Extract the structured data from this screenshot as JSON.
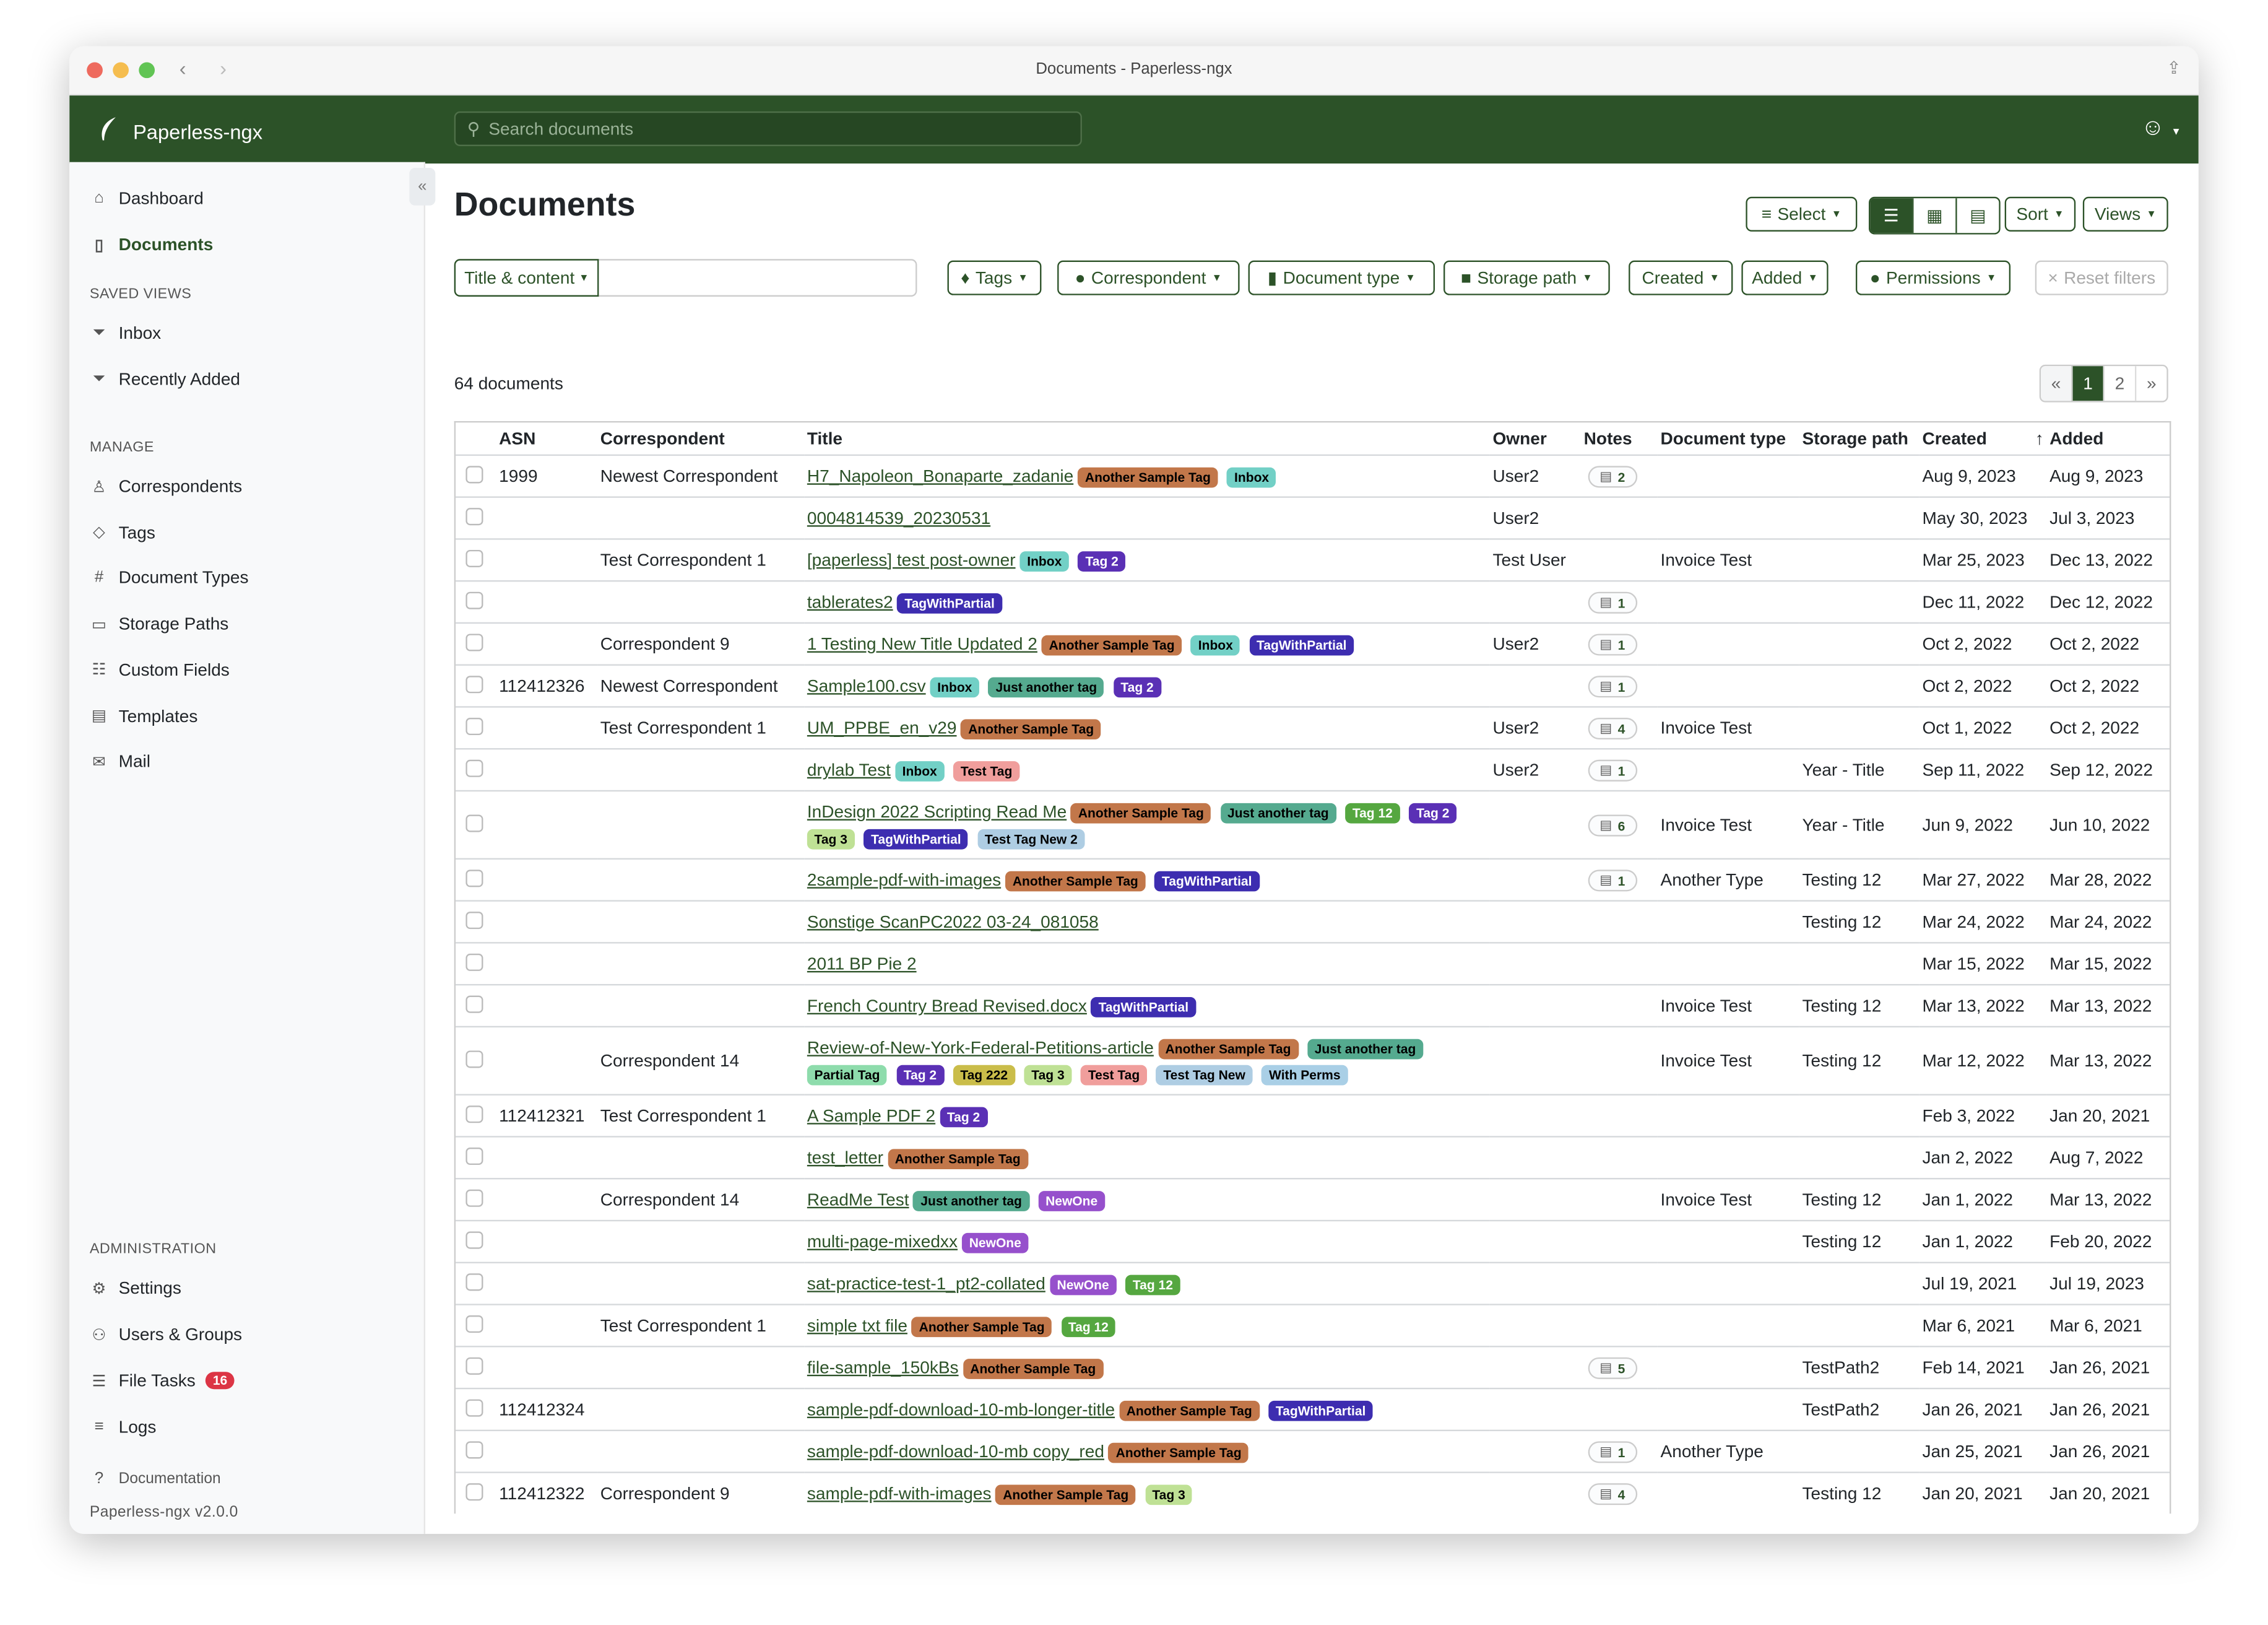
{
  "window": {
    "title": "Documents - Paperless-ngx"
  },
  "app": {
    "name": "Paperless-ngx",
    "search_placeholder": "Search documents"
  },
  "sidebar": {
    "main": [
      {
        "label": "Dashboard",
        "icon": "house-icon"
      },
      {
        "label": "Documents",
        "icon": "files-icon"
      }
    ],
    "saved_views_heading": "SAVED VIEWS",
    "saved_views": [
      {
        "label": "Inbox",
        "icon": "funnel-icon"
      },
      {
        "label": "Recently Added",
        "icon": "funnel-icon"
      }
    ],
    "manage_heading": "MANAGE",
    "manage": [
      {
        "label": "Correspondents",
        "icon": "person-icon"
      },
      {
        "label": "Tags",
        "icon": "tags-icon"
      },
      {
        "label": "Document Types",
        "icon": "hash-icon"
      },
      {
        "label": "Storage Paths",
        "icon": "folder-icon"
      },
      {
        "label": "Custom Fields",
        "icon": "ui-radios-icon"
      },
      {
        "label": "Templates",
        "icon": "file-text-icon"
      },
      {
        "label": "Mail",
        "icon": "envelope-icon"
      }
    ],
    "admin_heading": "ADMINISTRATION",
    "admin": [
      {
        "label": "Settings",
        "icon": "gear-icon"
      },
      {
        "label": "Users & Groups",
        "icon": "people-icon"
      },
      {
        "label": "File Tasks",
        "icon": "list-task-icon",
        "badge": "16"
      },
      {
        "label": "Logs",
        "icon": "text-left-icon"
      }
    ],
    "documentation": "Documentation",
    "version": "Paperless-ngx v2.0.0"
  },
  "page": {
    "title": "Documents",
    "select": "Select",
    "sort": "Sort",
    "views": "Views",
    "count": "64 documents"
  },
  "filters": {
    "title_content": "Title & content",
    "tags": "Tags",
    "correspondent": "Correspondent",
    "document_type": "Document type",
    "storage_path": "Storage path",
    "created": "Created",
    "added": "Added",
    "permissions": "Permissions",
    "reset": "Reset filters"
  },
  "pagination": {
    "prev": "«",
    "pages": [
      "1",
      "2"
    ],
    "current": "1",
    "next": "»"
  },
  "columns": [
    "ASN",
    "Correspondent",
    "Title",
    "Owner",
    "Notes",
    "Document type",
    "Storage path",
    "Created",
    "Added"
  ],
  "sort_indicator": "↑",
  "tag_colors": {
    "Another Sample Tag": {
      "bg": "#c2774a",
      "fg": "#000000"
    },
    "Inbox": {
      "bg": "#72d0c6",
      "fg": "#000000"
    },
    "Tag 2": {
      "bg": "#5a30b5",
      "fg": "#ffffff"
    },
    "TagWithPartial": {
      "bg": "#3d2db0",
      "fg": "#ffffff"
    },
    "Just another tag": {
      "bg": "#55aa8f",
      "fg": "#000000"
    },
    "Test Tag": {
      "bg": "#f09e9c",
      "fg": "#000000"
    },
    "Tag 12": {
      "bg": "#55a740",
      "fg": "#ffffff"
    },
    "Tag 3": {
      "bg": "#bfe195",
      "fg": "#000000"
    },
    "Test Tag New 2": {
      "bg": "#aecde3",
      "fg": "#000000"
    },
    "Partial Tag": {
      "bg": "#8edcac",
      "fg": "#000000"
    },
    "Tag 222": {
      "bg": "#cabd4a",
      "fg": "#000000"
    },
    "Test Tag New": {
      "bg": "#aecde3",
      "fg": "#000000"
    },
    "With Perms": {
      "bg": "#a9cfe6",
      "fg": "#000000"
    },
    "NewOne": {
      "bg": "#9650cc",
      "fg": "#ffffff"
    }
  },
  "rows": [
    {
      "asn": "1999",
      "correspondent": "Newest Correspondent",
      "title": "H7_Napoleon_Bonaparte_zadanie",
      "tags": [
        "Another Sample Tag",
        "Inbox"
      ],
      "owner": "User2",
      "notes": "2",
      "doctype": "",
      "storage": "",
      "created": "Aug 9, 2023",
      "added": "Aug 9, 2023"
    },
    {
      "asn": "",
      "correspondent": "",
      "title": "0004814539_20230531",
      "tags": [],
      "owner": "User2",
      "notes": "",
      "doctype": "",
      "storage": "",
      "created": "May 30, 2023",
      "added": "Jul 3, 2023"
    },
    {
      "asn": "",
      "correspondent": "Test Correspondent 1",
      "title": "[paperless] test post-owner",
      "tags": [
        "Inbox",
        "Tag 2"
      ],
      "owner": "Test User",
      "notes": "",
      "doctype": "Invoice Test",
      "storage": "",
      "created": "Mar 25, 2023",
      "added": "Dec 13, 2022"
    },
    {
      "asn": "",
      "correspondent": "",
      "title": "tablerates2",
      "tags": [
        "TagWithPartial"
      ],
      "owner": "",
      "notes": "1",
      "doctype": "",
      "storage": "",
      "created": "Dec 11, 2022",
      "added": "Dec 12, 2022"
    },
    {
      "asn": "",
      "correspondent": "Correspondent 9",
      "title": "1 Testing New Title Updated 2",
      "tags": [
        "Another Sample Tag",
        "Inbox",
        "TagWithPartial"
      ],
      "owner": "User2",
      "notes": "1",
      "doctype": "",
      "storage": "",
      "created": "Oct 2, 2022",
      "added": "Oct 2, 2022"
    },
    {
      "asn": "112412326",
      "correspondent": "Newest Correspondent",
      "title": "Sample100.csv",
      "tags": [
        "Inbox",
        "Just another tag",
        "Tag 2"
      ],
      "owner": "",
      "notes": "1",
      "doctype": "",
      "storage": "",
      "created": "Oct 2, 2022",
      "added": "Oct 2, 2022"
    },
    {
      "asn": "",
      "correspondent": "Test Correspondent 1",
      "title": "UM_PPBE_en_v29",
      "tags": [
        "Another Sample Tag"
      ],
      "owner": "User2",
      "notes": "4",
      "doctype": "Invoice Test",
      "storage": "",
      "created": "Oct 1, 2022",
      "added": "Oct 2, 2022"
    },
    {
      "asn": "",
      "correspondent": "",
      "title": "drylab Test",
      "tags": [
        "Inbox",
        "Test Tag"
      ],
      "owner": "User2",
      "notes": "1",
      "doctype": "",
      "storage": "Year - Title",
      "created": "Sep 11, 2022",
      "added": "Sep 12, 2022"
    },
    {
      "asn": "",
      "correspondent": "",
      "title": "InDesign 2022 Scripting Read Me",
      "tags": [
        "Another Sample Tag",
        "Just another tag",
        "Tag 12",
        "Tag 2",
        "Tag 3",
        "TagWithPartial",
        "Test Tag New 2"
      ],
      "owner": "",
      "notes": "6",
      "doctype": "Invoice Test",
      "storage": "Year - Title",
      "created": "Jun 9, 2022",
      "added": "Jun 10, 2022"
    },
    {
      "asn": "",
      "correspondent": "",
      "title": "2sample-pdf-with-images",
      "tags": [
        "Another Sample Tag",
        "TagWithPartial"
      ],
      "owner": "",
      "notes": "1",
      "doctype": "Another Type",
      "storage": "Testing 12",
      "created": "Mar 27, 2022",
      "added": "Mar 28, 2022"
    },
    {
      "asn": "",
      "correspondent": "",
      "title": "Sonstige ScanPC2022 03-24_081058",
      "tags": [],
      "owner": "",
      "notes": "",
      "doctype": "",
      "storage": "Testing 12",
      "created": "Mar 24, 2022",
      "added": "Mar 24, 2022"
    },
    {
      "asn": "",
      "correspondent": "",
      "title": "2011 BP Pie 2",
      "tags": [],
      "owner": "",
      "notes": "",
      "doctype": "",
      "storage": "",
      "created": "Mar 15, 2022",
      "added": "Mar 15, 2022"
    },
    {
      "asn": "",
      "correspondent": "",
      "title": "French Country Bread Revised.docx",
      "tags": [
        "TagWithPartial"
      ],
      "owner": "",
      "notes": "",
      "doctype": "Invoice Test",
      "storage": "Testing 12",
      "created": "Mar 13, 2022",
      "added": "Mar 13, 2022"
    },
    {
      "asn": "",
      "correspondent": "Correspondent 14",
      "title": "Review-of-New-York-Federal-Petitions-article",
      "tags": [
        "Another Sample Tag",
        "Just another tag",
        "Partial Tag",
        "Tag 2",
        "Tag 222",
        "Tag 3",
        "Test Tag",
        "Test Tag New",
        "With Perms"
      ],
      "owner": "",
      "notes": "",
      "doctype": "Invoice Test",
      "storage": "Testing 12",
      "created": "Mar 12, 2022",
      "added": "Mar 13, 2022"
    },
    {
      "asn": "112412321",
      "correspondent": "Test Correspondent 1",
      "title": "A Sample PDF 2",
      "tags": [
        "Tag 2"
      ],
      "owner": "",
      "notes": "",
      "doctype": "",
      "storage": "",
      "created": "Feb 3, 2022",
      "added": "Jan 20, 2021"
    },
    {
      "asn": "",
      "correspondent": "",
      "title": "test_letter",
      "tags": [
        "Another Sample Tag"
      ],
      "owner": "",
      "notes": "",
      "doctype": "",
      "storage": "",
      "created": "Jan 2, 2022",
      "added": "Aug 7, 2022"
    },
    {
      "asn": "",
      "correspondent": "Correspondent 14",
      "title": "ReadMe Test",
      "tags": [
        "Just another tag",
        "NewOne"
      ],
      "owner": "",
      "notes": "",
      "doctype": "Invoice Test",
      "storage": "Testing 12",
      "created": "Jan 1, 2022",
      "added": "Mar 13, 2022"
    },
    {
      "asn": "",
      "correspondent": "",
      "title": "multi-page-mixedxx",
      "tags": [
        "NewOne"
      ],
      "owner": "",
      "notes": "",
      "doctype": "",
      "storage": "Testing 12",
      "created": "Jan 1, 2022",
      "added": "Feb 20, 2022"
    },
    {
      "asn": "",
      "correspondent": "",
      "title": "sat-practice-test-1_pt2-collated",
      "tags": [
        "NewOne",
        "Tag 12"
      ],
      "owner": "",
      "notes": "",
      "doctype": "",
      "storage": "",
      "created": "Jul 19, 2021",
      "added": "Jul 19, 2023"
    },
    {
      "asn": "",
      "correspondent": "Test Correspondent 1",
      "title": "simple txt file",
      "tags": [
        "Another Sample Tag",
        "Tag 12"
      ],
      "owner": "",
      "notes": "",
      "doctype": "",
      "storage": "",
      "created": "Mar 6, 2021",
      "added": "Mar 6, 2021"
    },
    {
      "asn": "",
      "correspondent": "",
      "title": "file-sample_150kBs",
      "tags": [
        "Another Sample Tag"
      ],
      "owner": "",
      "notes": "5",
      "doctype": "",
      "storage": "TestPath2",
      "created": "Feb 14, 2021",
      "added": "Jan 26, 2021"
    },
    {
      "asn": "112412324",
      "correspondent": "",
      "title": "sample-pdf-download-10-mb-longer-title",
      "tags": [
        "Another Sample Tag",
        "TagWithPartial"
      ],
      "owner": "",
      "notes": "",
      "doctype": "",
      "storage": "TestPath2",
      "created": "Jan 26, 2021",
      "added": "Jan 26, 2021"
    },
    {
      "asn": "",
      "correspondent": "",
      "title": "sample-pdf-download-10-mb copy_red",
      "tags": [
        "Another Sample Tag"
      ],
      "owner": "",
      "notes": "1",
      "doctype": "Another Type",
      "storage": "",
      "created": "Jan 25, 2021",
      "added": "Jan 26, 2021"
    },
    {
      "asn": "112412322",
      "correspondent": "Correspondent 9",
      "title": "sample-pdf-with-images",
      "tags": [
        "Another Sample Tag",
        "Tag 3"
      ],
      "owner": "",
      "notes": "4",
      "doctype": "",
      "storage": "Testing 12",
      "created": "Jan 20, 2021",
      "added": "Jan 20, 2021"
    }
  ]
}
